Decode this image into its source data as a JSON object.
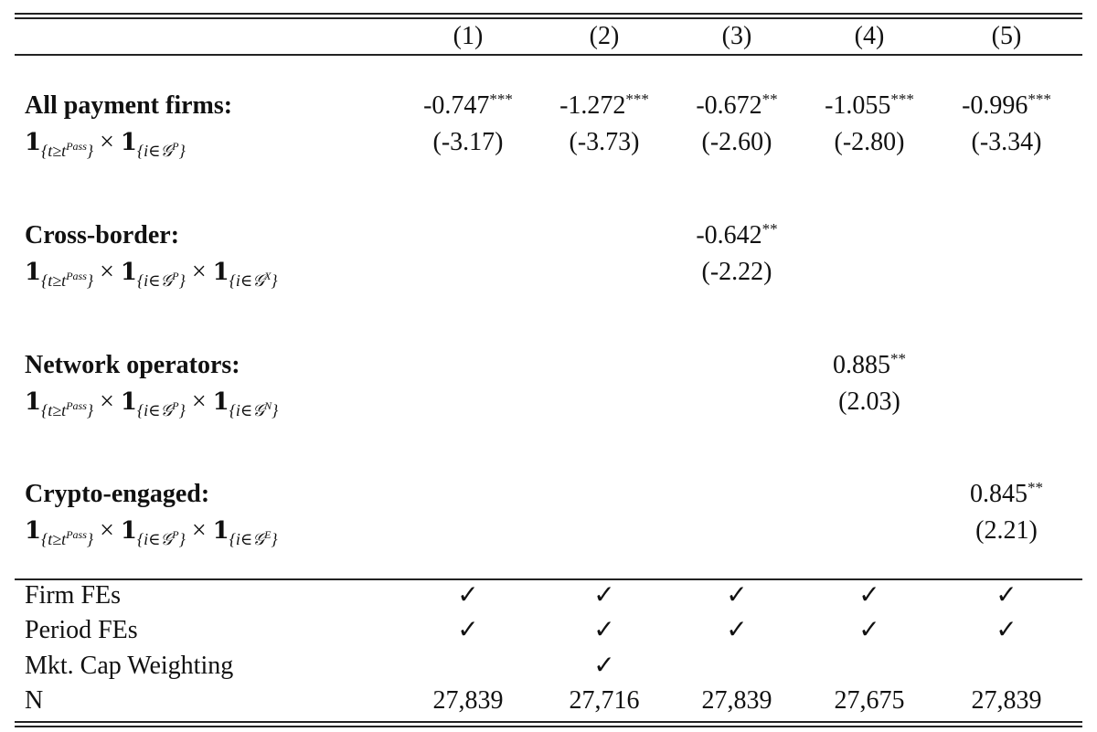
{
  "table": {
    "columns": [
      "(1)",
      "(2)",
      "(3)",
      "(4)",
      "(5)"
    ],
    "panels": [
      {
        "label": "All payment firms:",
        "formula": [
          {
            "text": "1",
            "style": "bold"
          },
          {
            "text": "{t≥t",
            "style": "sub"
          },
          {
            "text": "Pass",
            "style": "subsup"
          },
          {
            "text": "}",
            "style": "sub"
          },
          {
            "text": " × ",
            "style": "normal"
          },
          {
            "text": "1",
            "style": "bold"
          },
          {
            "text": "{i∈𝒢",
            "style": "sub"
          },
          {
            "text": "P",
            "style": "subsup"
          },
          {
            "text": "}",
            "style": "sub"
          }
        ],
        "cells": [
          {
            "coef": "-0.747",
            "stars": "***",
            "t": "(-3.17)"
          },
          {
            "coef": "-1.272",
            "stars": "***",
            "t": "(-3.73)"
          },
          {
            "coef": "-0.672",
            "stars": "**",
            "t": "(-2.60)"
          },
          {
            "coef": "-1.055",
            "stars": "***",
            "t": "(-2.80)"
          },
          {
            "coef": "-0.996",
            "stars": "***",
            "t": "(-3.34)"
          }
        ]
      },
      {
        "label": "Cross-border:",
        "formula": [
          {
            "text": "1",
            "style": "bold"
          },
          {
            "text": "{t≥t",
            "style": "sub"
          },
          {
            "text": "Pass",
            "style": "subsup"
          },
          {
            "text": "}",
            "style": "sub"
          },
          {
            "text": " × ",
            "style": "normal"
          },
          {
            "text": "1",
            "style": "bold"
          },
          {
            "text": "{i∈𝒢",
            "style": "sub"
          },
          {
            "text": "P",
            "style": "subsup"
          },
          {
            "text": "}",
            "style": "sub"
          },
          {
            "text": " × ",
            "style": "normal"
          },
          {
            "text": "1",
            "style": "bold"
          },
          {
            "text": "{i∈𝒢",
            "style": "sub"
          },
          {
            "text": "X",
            "style": "subsup"
          },
          {
            "text": "}",
            "style": "sub"
          }
        ],
        "cells": [
          null,
          null,
          {
            "coef": "-0.642",
            "stars": "**",
            "t": "(-2.22)"
          },
          null,
          null
        ]
      },
      {
        "label": "Network operators:",
        "formula": [
          {
            "text": "1",
            "style": "bold"
          },
          {
            "text": "{t≥t",
            "style": "sub"
          },
          {
            "text": "Pass",
            "style": "subsup"
          },
          {
            "text": "}",
            "style": "sub"
          },
          {
            "text": " × ",
            "style": "normal"
          },
          {
            "text": "1",
            "style": "bold"
          },
          {
            "text": "{i∈𝒢",
            "style": "sub"
          },
          {
            "text": "P",
            "style": "subsup"
          },
          {
            "text": "}",
            "style": "sub"
          },
          {
            "text": " × ",
            "style": "normal"
          },
          {
            "text": "1",
            "style": "bold"
          },
          {
            "text": "{i∈𝒢",
            "style": "sub"
          },
          {
            "text": "N",
            "style": "subsup"
          },
          {
            "text": "}",
            "style": "sub"
          }
        ],
        "cells": [
          null,
          null,
          null,
          {
            "coef": "0.885",
            "stars": "**",
            "t": "(2.03)"
          },
          null
        ]
      },
      {
        "label": "Crypto-engaged:",
        "formula": [
          {
            "text": "1",
            "style": "bold"
          },
          {
            "text": "{t≥t",
            "style": "sub"
          },
          {
            "text": "Pass",
            "style": "subsup"
          },
          {
            "text": "}",
            "style": "sub"
          },
          {
            "text": " × ",
            "style": "normal"
          },
          {
            "text": "1",
            "style": "bold"
          },
          {
            "text": "{i∈𝒢",
            "style": "sub"
          },
          {
            "text": "P",
            "style": "subsup"
          },
          {
            "text": "}",
            "style": "sub"
          },
          {
            "text": " × ",
            "style": "normal"
          },
          {
            "text": "1",
            "style": "bold"
          },
          {
            "text": "{i∈𝒢",
            "style": "sub"
          },
          {
            "text": "E",
            "style": "subsup"
          },
          {
            "text": "}",
            "style": "sub"
          }
        ],
        "cells": [
          null,
          null,
          null,
          null,
          {
            "coef": "0.845",
            "stars": "**",
            "t": "(2.21)"
          }
        ]
      }
    ],
    "footer_rows": [
      {
        "label": "Firm FEs",
        "cells": [
          "✓",
          "✓",
          "✓",
          "✓",
          "✓"
        ]
      },
      {
        "label": "Period FEs",
        "cells": [
          "✓",
          "✓",
          "✓",
          "✓",
          "✓"
        ]
      },
      {
        "label": "Mkt. Cap Weighting",
        "cells": [
          null,
          "✓",
          null,
          null,
          null
        ]
      },
      {
        "label": "N",
        "cells": [
          "27,839",
          "27,716",
          "27,839",
          "27,675",
          "27,839"
        ]
      }
    ]
  }
}
